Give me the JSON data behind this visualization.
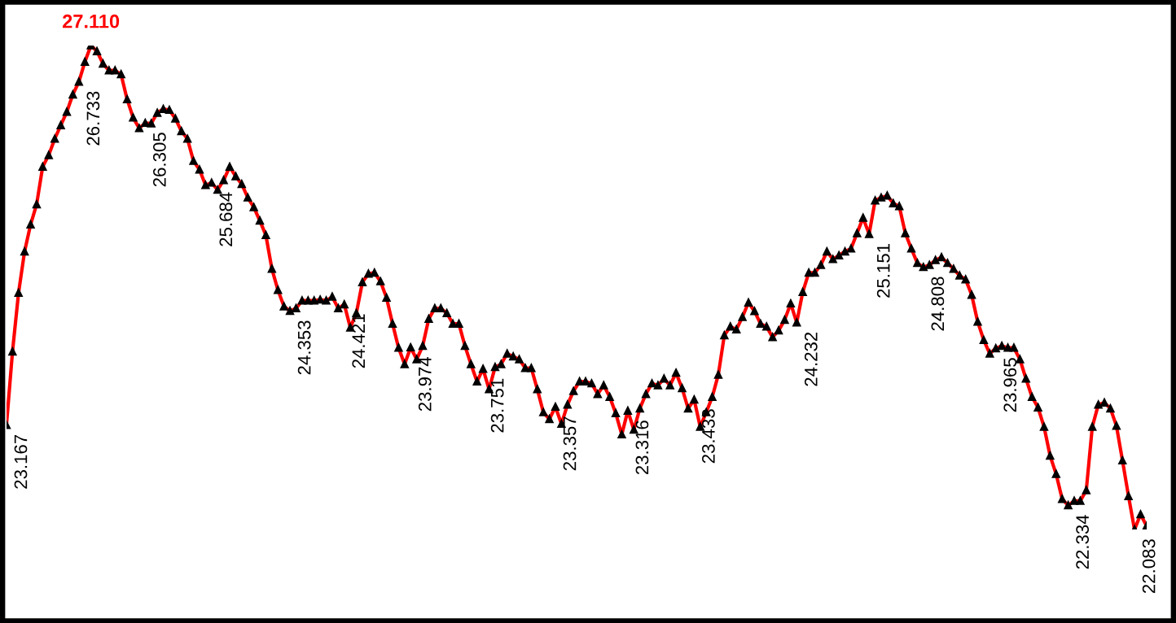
{
  "chart_data": {
    "type": "line",
    "categories": [
      null,
      null,
      null,
      null,
      null,
      null,
      null,
      null,
      null,
      null,
      null,
      null,
      null,
      null,
      null,
      null,
      null,
      null,
      null,
      null,
      null,
      null,
      null,
      null,
      null,
      null,
      null,
      null,
      null,
      null,
      null,
      null,
      null,
      null,
      null,
      null,
      null,
      null,
      null,
      null,
      null,
      null,
      null,
      null,
      null,
      null,
      null,
      null,
      null,
      null,
      null,
      null,
      null,
      null,
      null,
      null,
      null,
      null,
      null,
      null,
      null,
      null,
      null,
      null,
      null,
      null,
      null,
      null,
      null,
      null,
      null,
      null,
      null,
      null,
      null,
      null,
      null,
      null,
      null,
      null,
      null,
      null,
      null,
      null,
      null,
      null,
      null,
      null,
      null,
      null,
      null,
      null,
      null,
      null,
      null,
      null,
      null,
      null,
      null,
      null,
      null,
      null,
      null,
      null,
      null,
      null,
      null,
      null,
      null,
      null,
      null,
      null,
      null,
      null,
      null,
      null,
      null,
      null,
      null,
      null,
      null,
      null,
      null,
      null,
      null,
      null,
      null,
      null,
      null,
      null,
      null,
      null,
      null,
      null,
      null,
      null,
      null,
      null,
      null,
      null,
      null,
      null,
      null,
      null,
      null,
      null,
      null,
      null,
      null,
      null,
      null,
      null,
      null,
      null,
      null,
      null,
      null,
      null,
      null,
      null,
      null,
      null,
      null,
      null,
      null,
      null,
      null,
      null,
      null,
      null,
      null,
      null,
      null,
      null,
      null,
      null,
      null,
      null,
      null,
      null,
      null,
      null,
      null,
      null,
      null,
      null,
      null,
      null,
      null,
      null
    ],
    "series": [
      {
        "color": "#ff0000",
        "values": [
          23.167,
          23.93,
          24.54,
          24.97,
          25.25,
          25.46,
          25.85,
          25.97,
          26.14,
          26.28,
          26.42,
          26.6,
          26.733,
          26.94,
          27.11,
          27.05,
          26.92,
          26.85,
          26.85,
          26.81,
          26.55,
          26.36,
          26.25,
          26.305,
          26.3,
          26.41,
          26.45,
          26.44,
          26.35,
          26.22,
          26.14,
          25.91,
          25.82,
          25.66,
          25.684,
          25.61,
          25.71,
          25.85,
          25.75,
          25.67,
          25.53,
          25.43,
          25.29,
          25.14,
          24.79,
          24.57,
          24.4,
          24.353,
          24.38,
          24.46,
          24.46,
          24.46,
          24.47,
          24.46,
          24.5,
          24.38,
          24.421,
          24.18,
          24.33,
          24.65,
          24.74,
          24.75,
          24.66,
          24.49,
          24.22,
          23.97,
          23.8,
          23.974,
          23.85,
          23.99,
          24.27,
          24.38,
          24.38,
          24.33,
          24.22,
          24.22,
          23.99,
          23.8,
          23.62,
          23.751,
          23.54,
          23.77,
          23.8,
          23.91,
          23.88,
          23.85,
          23.76,
          23.76,
          23.54,
          23.3,
          23.23,
          23.357,
          23.18,
          23.38,
          23.52,
          23.62,
          23.62,
          23.6,
          23.49,
          23.58,
          23.46,
          23.29,
          23.07,
          23.316,
          23.12,
          23.34,
          23.49,
          23.6,
          23.58,
          23.65,
          23.58,
          23.71,
          23.55,
          23.34,
          23.433,
          23.15,
          23.3,
          23.46,
          23.69,
          24.1,
          24.19,
          24.16,
          24.29,
          24.44,
          24.35,
          24.22,
          24.19,
          24.08,
          24.15,
          24.26,
          24.43,
          24.232,
          24.55,
          24.75,
          24.75,
          24.83,
          24.97,
          24.89,
          24.93,
          24.97,
          25.0,
          25.16,
          25.32,
          25.151,
          25.5,
          25.53,
          25.55,
          25.47,
          25.44,
          25.16,
          25.0,
          24.85,
          24.808,
          24.83,
          24.88,
          24.91,
          24.85,
          24.79,
          24.72,
          24.68,
          24.52,
          24.24,
          24.05,
          23.91,
          23.965,
          23.99,
          23.97,
          23.97,
          23.85,
          23.65,
          23.46,
          23.35,
          23.15,
          22.85,
          22.66,
          22.4,
          22.334,
          22.38,
          22.38,
          22.49,
          23.15,
          23.38,
          23.4,
          23.34,
          23.16,
          22.8,
          22.43,
          22.083,
          22.24,
          22.12
        ],
        "value_labels": [
          "23.167",
          null,
          null,
          null,
          null,
          null,
          null,
          null,
          null,
          null,
          null,
          null,
          "26.733",
          null,
          "27.110",
          null,
          null,
          null,
          null,
          null,
          null,
          null,
          null,
          "26.305",
          null,
          null,
          null,
          null,
          null,
          null,
          null,
          null,
          null,
          null,
          "25.684",
          null,
          null,
          null,
          null,
          null,
          null,
          null,
          null,
          null,
          null,
          null,
          null,
          "24.353",
          null,
          null,
          null,
          null,
          null,
          null,
          null,
          null,
          "24.421",
          null,
          null,
          null,
          null,
          null,
          null,
          null,
          null,
          null,
          null,
          "23.974",
          null,
          null,
          null,
          null,
          null,
          null,
          null,
          null,
          null,
          null,
          null,
          "23.751",
          null,
          null,
          null,
          null,
          null,
          null,
          null,
          null,
          null,
          null,
          null,
          "23.357",
          null,
          null,
          null,
          null,
          null,
          null,
          null,
          null,
          null,
          null,
          null,
          "23.316",
          null,
          null,
          null,
          null,
          null,
          null,
          null,
          null,
          null,
          null,
          "23.433",
          null,
          null,
          null,
          null,
          null,
          null,
          null,
          null,
          null,
          null,
          null,
          null,
          null,
          null,
          null,
          null,
          "24.232",
          null,
          null,
          null,
          null,
          null,
          null,
          null,
          null,
          null,
          null,
          null,
          "25.151",
          null,
          null,
          null,
          null,
          null,
          null,
          null,
          null,
          "24.808",
          null,
          null,
          null,
          null,
          null,
          null,
          null,
          null,
          null,
          null,
          null,
          "23.965",
          null,
          null,
          null,
          null,
          null,
          null,
          null,
          null,
          null,
          null,
          null,
          "22.334",
          null,
          null,
          null,
          null,
          null,
          null,
          null,
          null,
          null,
          null,
          "22.083",
          null,
          null
        ]
      }
    ],
    "marker": "triangle",
    "line_style": "solid",
    "legend": false,
    "tick_labels": false
  }
}
